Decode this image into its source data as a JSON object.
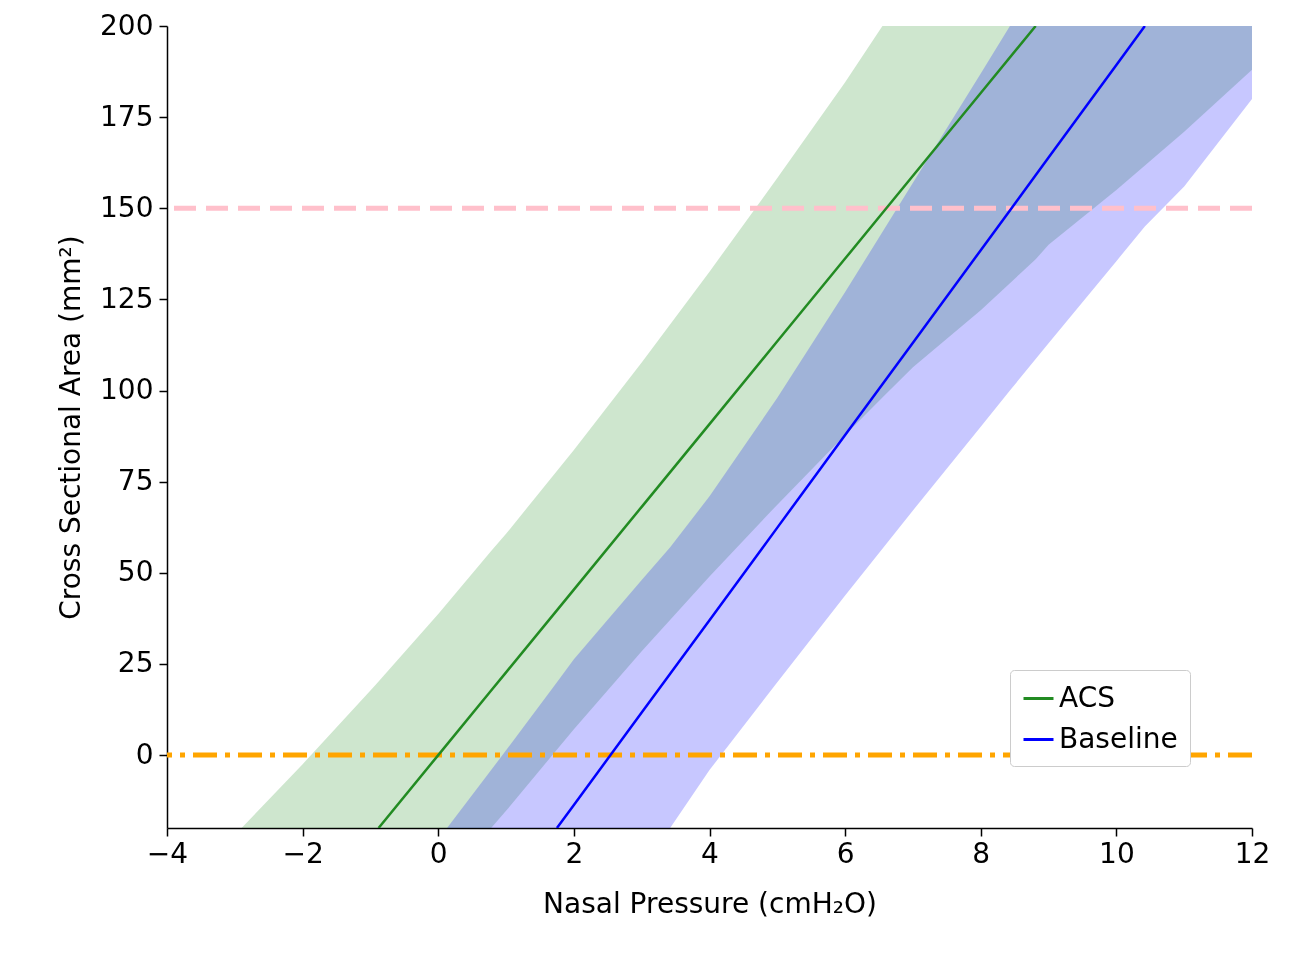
{
  "chart_data": {
    "type": "line",
    "xlabel": "Nasal Pressure (cmH₂O)",
    "ylabel": "Cross Sectional Area (mm²)",
    "xlim": [
      -4,
      12
    ],
    "xticks": [
      -4,
      -2,
      0,
      2,
      4,
      6,
      8,
      10,
      12
    ],
    "ylim": [
      -20,
      200
    ],
    "yticks": [
      0,
      25,
      50,
      75,
      100,
      125,
      150,
      175,
      200
    ],
    "grid": false,
    "legend": "bottom right",
    "marker": "none",
    "line_style": "solid",
    "series": [
      {
        "name": "ACS",
        "color": "#228b22",
        "x": [
          -2.9,
          -2,
          -1,
          -0.88,
          0,
          0.78,
          1,
          2,
          3,
          4,
          5,
          6,
          6.55,
          7,
          8,
          8.81,
          9,
          10,
          11,
          12
        ],
        "values": [
          null,
          null,
          null,
          -20,
          0,
          17.7,
          22.7,
          45.4,
          68.1,
          90.8,
          113.5,
          136.2,
          148.7,
          158.9,
          181.6,
          200,
          null,
          null,
          null,
          null
        ],
        "lower": [
          -20,
          -20,
          -20,
          -20,
          -20,
          -20,
          -15.3,
          7.1,
          28.5,
          49,
          68.7,
          87.8,
          98.1,
          106.4,
          122,
          136,
          140,
          155,
          171,
          188
        ],
        "upper": [
          -20,
          -2.5,
          17.7,
          20.2,
          38.7,
          56,
          60.7,
          83.7,
          107.7,
          132.6,
          158.3,
          184.6,
          200,
          200,
          200,
          200,
          200,
          200,
          200,
          200
        ]
      },
      {
        "name": "Baseline",
        "color": "#0000ff",
        "x": [
          0.13,
          1,
          1.75,
          2,
          3,
          3.42,
          4,
          5,
          6,
          7,
          8,
          8.43,
          9,
          10,
          10.42,
          11,
          12
        ],
        "values": [
          null,
          null,
          -20,
          -13.7,
          11.7,
          22.3,
          37,
          62.4,
          87.8,
          113.1,
          138.5,
          149.4,
          163.9,
          189.3,
          200,
          null,
          null
        ],
        "lower": [
          -20,
          -20,
          -20,
          -20,
          -20,
          -20,
          -4.1,
          20,
          43.8,
          67.1,
          90.1,
          100,
          113,
          135.5,
          145,
          156,
          180
        ],
        "upper": [
          -20,
          1.3,
          20,
          26.3,
          48,
          57,
          71,
          98,
          127,
          157,
          187,
          200,
          200,
          200,
          200,
          200,
          200
        ]
      }
    ],
    "ref_lines": [
      {
        "axis": "y",
        "value": 150,
        "color": "#ffc0cb",
        "line_style": "dashed"
      },
      {
        "axis": "y",
        "value": 0,
        "color": "#ffa500",
        "line_style": "dashdot"
      }
    ]
  }
}
